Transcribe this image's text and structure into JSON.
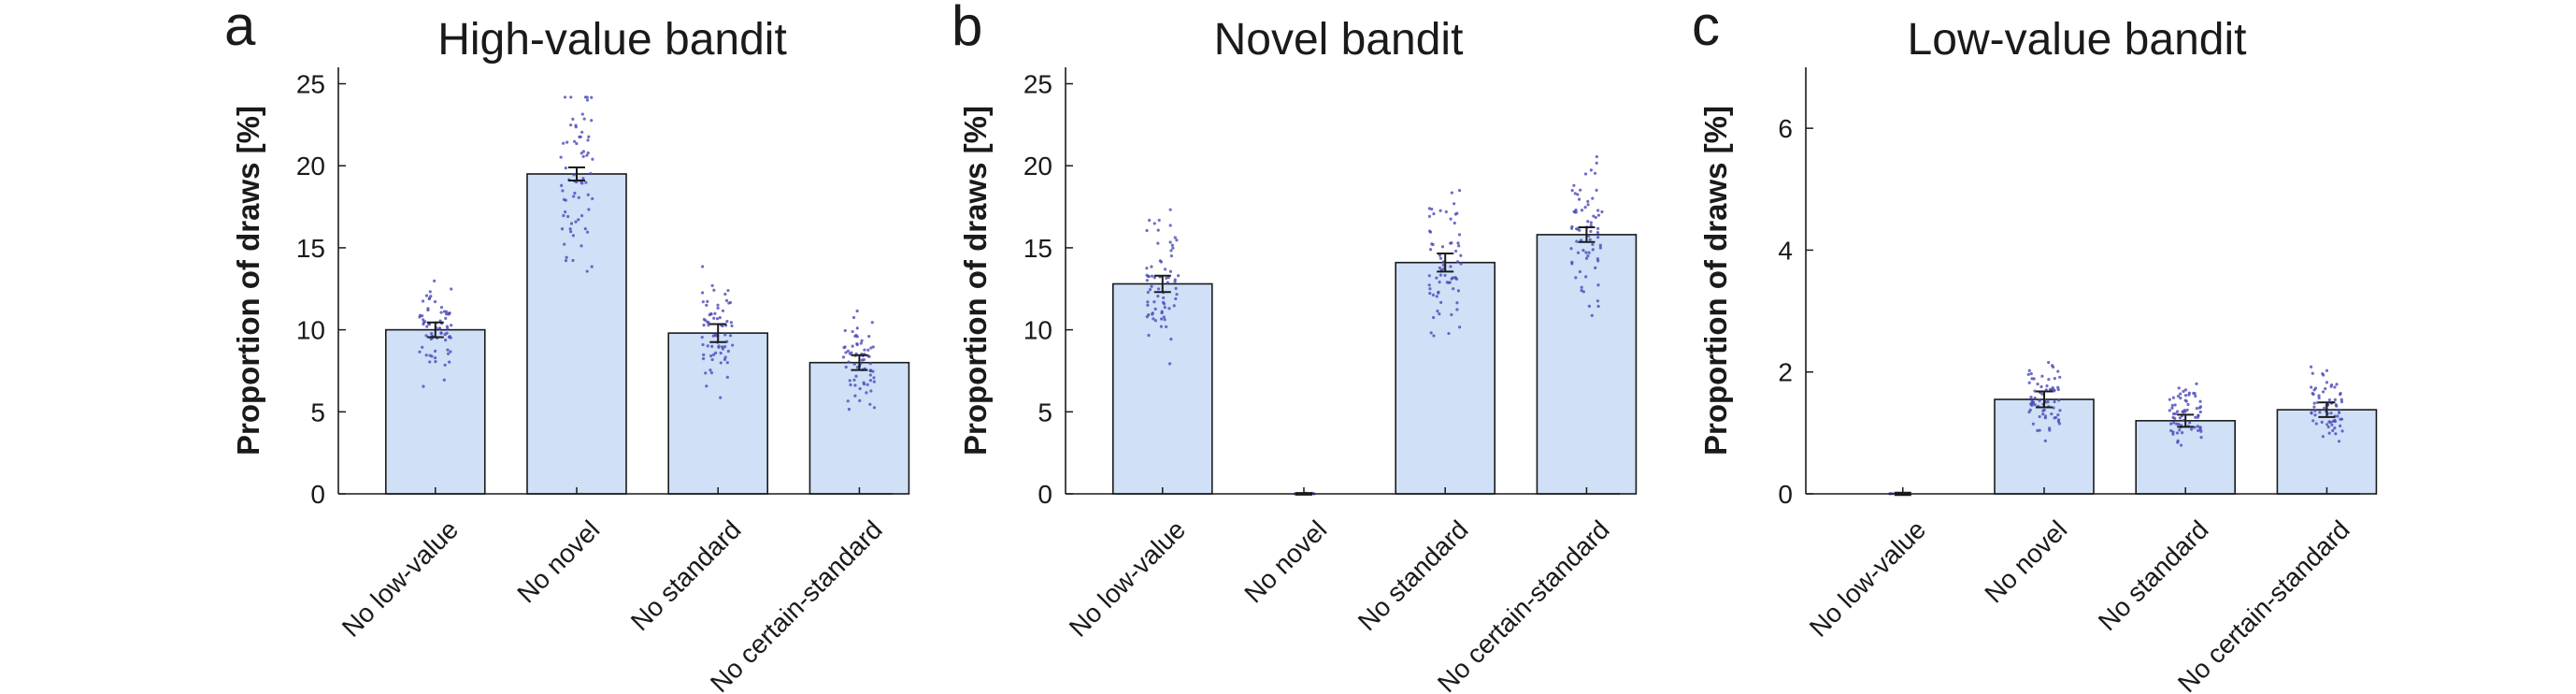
{
  "chart_data": [
    {
      "type": "bar",
      "panel_letter": "a",
      "title": "High-value bandit",
      "ylabel": "Proportion of draws [%]",
      "xlabel": "",
      "categories": [
        "No low-value",
        "No novel",
        "No standard",
        "No certain-standard"
      ],
      "values": [
        10.0,
        19.5,
        9.8,
        8.0
      ],
      "errors": [
        0.45,
        0.4,
        0.55,
        0.45
      ],
      "ylim": [
        0,
        26
      ],
      "yticks": [
        0,
        5,
        10,
        15,
        20,
        25
      ],
      "grid": false,
      "bar_color": "#cfe0f7",
      "point_color": "#4a4ab8"
    },
    {
      "type": "bar",
      "panel_letter": "b",
      "title": "Novel bandit",
      "ylabel": "Proportion of draws [%]",
      "xlabel": "",
      "categories": [
        "No low-value",
        "No novel",
        "No standard",
        "No certain-standard"
      ],
      "values": [
        12.8,
        0.0,
        14.1,
        15.8
      ],
      "errors": [
        0.5,
        0.05,
        0.55,
        0.45
      ],
      "ylim": [
        0,
        26
      ],
      "yticks": [
        0,
        5,
        10,
        15,
        20,
        25
      ],
      "grid": false,
      "bar_color": "#cfe0f7",
      "point_color": "#4a4ab8"
    },
    {
      "type": "bar",
      "panel_letter": "c",
      "title": "Low-value bandit",
      "ylabel": "Proportion of draws [%]",
      "xlabel": "",
      "categories": [
        "No low-value",
        "No novel",
        "No standard",
        "No certain-standard"
      ],
      "values": [
        0.0,
        1.55,
        1.2,
        1.38
      ],
      "errors": [
        0.02,
        0.13,
        0.1,
        0.12
      ],
      "ylim": [
        0,
        7
      ],
      "yticks": [
        0,
        2,
        4,
        6
      ],
      "grid": false,
      "bar_color": "#cfe0f7",
      "point_color": "#4a4ab8"
    }
  ]
}
